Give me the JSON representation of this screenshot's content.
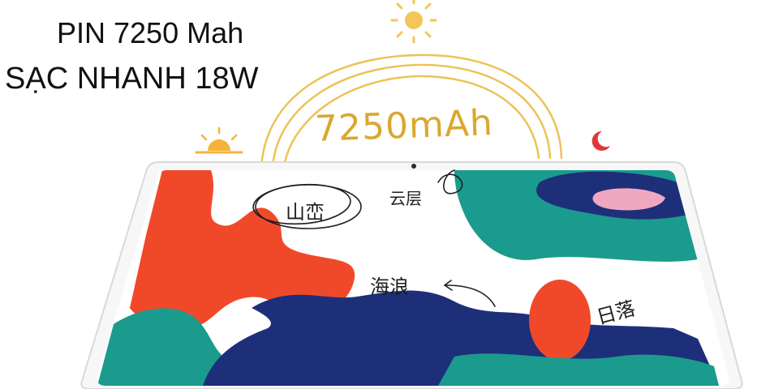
{
  "promo": {
    "battery_line": "PIN 7250 Mah",
    "charging_line": "SẠC NHANH 18W"
  },
  "illustration": {
    "badge_text": "7250mAh",
    "labels": {
      "mountain": "山峦",
      "cloud": "云层",
      "wave": "海浪",
      "sunset": "日落"
    }
  },
  "colors": {
    "accent_gold": "#e8b844",
    "red": "#f0492a",
    "teal": "#1a9b8e",
    "navy": "#1e2f7a",
    "pink": "#f0a8c0"
  }
}
